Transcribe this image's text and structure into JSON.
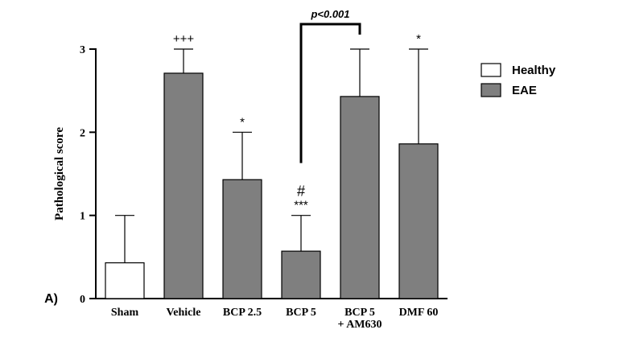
{
  "chart_data": {
    "type": "bar",
    "panel_label": "A)",
    "ylabel": "Pathological score",
    "ylim": [
      0,
      3
    ],
    "yticks": [
      "0",
      "1",
      "2",
      "3"
    ],
    "categories": [
      "Sham",
      "Vehicle",
      "BCP 2.5",
      "BCP 5",
      "BCP 5\n+ AM630",
      "DMF 60"
    ],
    "values": [
      0.43,
      2.71,
      1.43,
      0.57,
      2.43,
      1.86
    ],
    "errors": [
      0.57,
      0.29,
      0.57,
      0.43,
      0.57,
      1.14
    ],
    "groups": [
      "Healthy",
      "EAE",
      "EAE",
      "EAE",
      "EAE",
      "EAE"
    ],
    "annotations": [
      "",
      "+++",
      "*",
      "#\n***",
      "",
      "*"
    ],
    "bracket": {
      "from": "BCP 5",
      "to": "BCP 5\n+ AM630",
      "label": "p<0.001"
    },
    "legend": {
      "position": "right",
      "items": [
        {
          "label": "Healthy",
          "color": "#ffffff"
        },
        {
          "label": "EAE",
          "color": "#7f7f7f"
        }
      ]
    }
  }
}
